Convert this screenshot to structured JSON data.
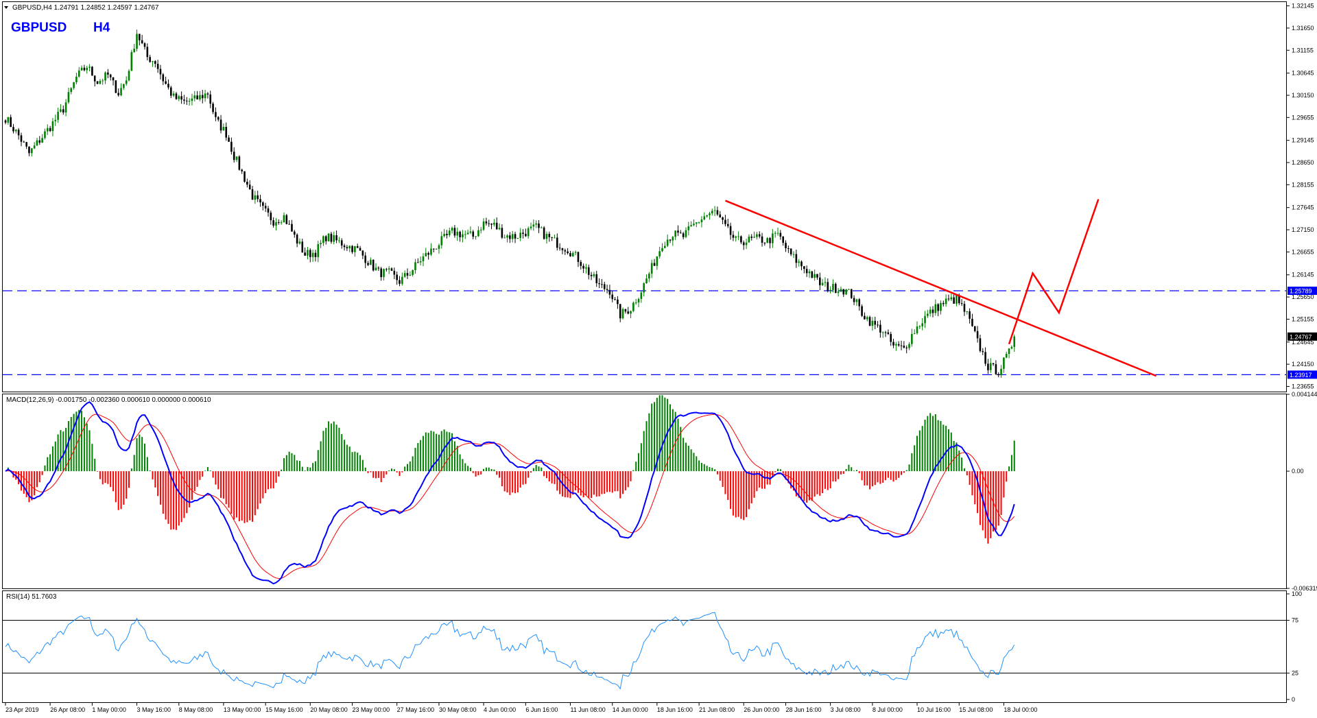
{
  "header": {
    "info_line": "GBPUSD,H4  1.24791 1.24852 1.24597 1.24767",
    "symbol": "GBPUSD",
    "timeframe": "H4"
  },
  "colors": {
    "bull": "#008000",
    "bear": "#000000",
    "trend": "#ff0000",
    "level": "#0000ff",
    "macd_main": "#0000ff",
    "macd_signal": "#ff0000",
    "hist_pos": "#008000",
    "hist_neg": "#ff0000",
    "rsi": "#1e90ff"
  },
  "chart_data": {
    "type": "candlestick",
    "price_axis": {
      "ylim": [
        1.2354,
        1.3223
      ],
      "ticks": [
        "1.32145",
        "1.31650",
        "1.31155",
        "1.30645",
        "1.30150",
        "1.29655",
        "1.29145",
        "1.28650",
        "1.28155",
        "1.27645",
        "1.27150",
        "1.26655",
        "1.26145",
        "1.25650",
        "1.25155",
        "1.24645",
        "1.24150",
        "1.23655"
      ]
    },
    "levels": [
      {
        "price": 1.25789,
        "label": "1.25789"
      },
      {
        "price": 1.23917,
        "label": "1.23917"
      }
    ],
    "current_price": {
      "price": 1.24767,
      "label": "1.24767"
    },
    "waypoints": [
      [
        0,
        1.2965
      ],
      [
        5,
        1.2925
      ],
      [
        9,
        1.2885
      ],
      [
        13,
        1.2915
      ],
      [
        17,
        1.2945
      ],
      [
        22,
        1.2985
      ],
      [
        27,
        1.3055
      ],
      [
        31,
        1.308
      ],
      [
        35,
        1.3045
      ],
      [
        39,
        1.306
      ],
      [
        43,
        1.302
      ],
      [
        46,
        1.305
      ],
      [
        50,
        1.3155
      ],
      [
        54,
        1.31
      ],
      [
        57,
        1.309
      ],
      [
        60,
        1.305
      ],
      [
        64,
        1.301
      ],
      [
        68,
        1.3
      ],
      [
        72,
        1.3005
      ],
      [
        77,
        1.302
      ],
      [
        80,
        1.296
      ],
      [
        84,
        1.293
      ],
      [
        87,
        1.288
      ],
      [
        91,
        1.283
      ],
      [
        94,
        1.279
      ],
      [
        98,
        1.276
      ],
      [
        102,
        1.2735
      ],
      [
        106,
        1.2745
      ],
      [
        110,
        1.27
      ],
      [
        114,
        1.266
      ],
      [
        118,
        1.2665
      ],
      [
        122,
        1.27
      ],
      [
        126,
        1.269
      ],
      [
        130,
        1.268
      ],
      [
        134,
        1.267
      ],
      [
        138,
        1.2645
      ],
      [
        142,
        1.262
      ],
      [
        146,
        1.2618
      ],
      [
        150,
        1.26
      ],
      [
        154,
        1.262
      ],
      [
        158,
        1.2648
      ],
      [
        162,
        1.2668
      ],
      [
        166,
        1.269
      ],
      [
        170,
        1.271
      ],
      [
        174,
        1.2705
      ],
      [
        178,
        1.27
      ],
      [
        182,
        1.273
      ],
      [
        186,
        1.2725
      ],
      [
        190,
        1.2702
      ],
      [
        194,
        1.27
      ],
      [
        198,
        1.271
      ],
      [
        202,
        1.272
      ],
      [
        206,
        1.27
      ],
      [
        210,
        1.2685
      ],
      [
        214,
        1.2672
      ],
      [
        218,
        1.265
      ],
      [
        222,
        1.262
      ],
      [
        226,
        1.259
      ],
      [
        230,
        1.258
      ],
      [
        234,
        1.2525
      ],
      [
        238,
        1.254
      ],
      [
        242,
        1.258
      ],
      [
        246,
        1.263
      ],
      [
        250,
        1.2685
      ],
      [
        254,
        1.2705
      ],
      [
        258,
        1.27
      ],
      [
        262,
        1.2725
      ],
      [
        266,
        1.2745
      ],
      [
        270,
        1.2755
      ],
      [
        274,
        1.272
      ],
      [
        278,
        1.269
      ],
      [
        282,
        1.269
      ],
      [
        286,
        1.2695
      ],
      [
        290,
        1.269
      ],
      [
        294,
        1.2705
      ],
      [
        298,
        1.2665
      ],
      [
        302,
        1.264
      ],
      [
        306,
        1.262
      ],
      [
        310,
        1.2595
      ],
      [
        314,
        1.2585
      ],
      [
        318,
        1.2585
      ],
      [
        322,
        1.257
      ],
      [
        326,
        1.253
      ],
      [
        330,
        1.2505
      ],
      [
        334,
        1.249
      ],
      [
        338,
        1.2455
      ],
      [
        342,
        1.245
      ],
      [
        346,
        1.249
      ],
      [
        350,
        1.252
      ],
      [
        354,
        1.254
      ],
      [
        358,
        1.2555
      ],
      [
        362,
        1.256
      ],
      [
        366,
        1.2525
      ],
      [
        370,
        1.2465
      ],
      [
        374,
        1.241
      ],
      [
        378,
        1.24
      ],
      [
        382,
        1.244
      ],
      [
        384,
        1.2477
      ]
    ],
    "bar_count": 385,
    "time_labels": [
      {
        "bar": 0,
        "label": "23 Apr 2019"
      },
      {
        "bar": 17,
        "label": "26 Apr 08:00"
      },
      {
        "bar": 33,
        "label": "1 May 00:00"
      },
      {
        "bar": 50,
        "label": "3 May 16:00"
      },
      {
        "bar": 66,
        "label": "8 May 08:00"
      },
      {
        "bar": 83,
        "label": "13 May 00:00"
      },
      {
        "bar": 99,
        "label": "15 May 16:00"
      },
      {
        "bar": 116,
        "label": "20 May 08:00"
      },
      {
        "bar": 132,
        "label": "23 May 00:00"
      },
      {
        "bar": 149,
        "label": "27 May 16:00"
      },
      {
        "bar": 165,
        "label": "30 May 08:00"
      },
      {
        "bar": 182,
        "label": "4 Jun 00:00"
      },
      {
        "bar": 198,
        "label": "6 Jun 16:00"
      },
      {
        "bar": 215,
        "label": "11 Jun 08:00"
      },
      {
        "bar": 231,
        "label": "14 Jun 00:00"
      },
      {
        "bar": 248,
        "label": "18 Jun 16:00"
      },
      {
        "bar": 264,
        "label": "21 Jun 08:00"
      },
      {
        "bar": 281,
        "label": "26 Jun 00:00"
      },
      {
        "bar": 297,
        "label": "28 Jun 16:00"
      },
      {
        "bar": 314,
        "label": "3 Jul 08:00"
      },
      {
        "bar": 330,
        "label": "8 Jul 00:00"
      },
      {
        "bar": 347,
        "label": "10 Jul 16:00"
      },
      {
        "bar": 363,
        "label": "15 Jul 08:00"
      },
      {
        "bar": 380,
        "label": "18 Jul 00:00"
      }
    ],
    "trendline": {
      "from": [
        274,
        1.278
      ],
      "to": [
        438,
        1.2389
      ]
    },
    "projection": [
      [
        382,
        1.246
      ],
      [
        391,
        1.2618
      ],
      [
        401,
        1.253
      ],
      [
        416,
        1.2783
      ]
    ],
    "macd": {
      "label": "MACD(12,26,9) -0.001750 -0.002360 0.000610 0.000000 0.000610",
      "ylim": [
        -0.006319,
        0.004144
      ],
      "ticks": [
        "0.004144",
        "0.00",
        "-0.006319"
      ]
    },
    "rsi": {
      "label": "RSI(14) 51.7603",
      "ylim": [
        0,
        100
      ],
      "ticks": [
        "100",
        "75",
        "25",
        "0"
      ],
      "levels": [
        75,
        25
      ],
      "last": 51.7603
    }
  }
}
